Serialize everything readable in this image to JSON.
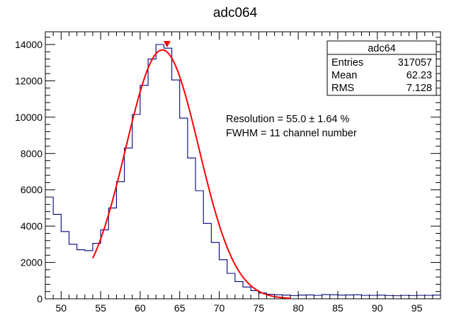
{
  "chart_data": {
    "type": "histogram",
    "title": "adc064",
    "xlim": [
      48,
      98
    ],
    "ylim": [
      0,
      14700
    ],
    "x_ticks": [
      50,
      55,
      60,
      65,
      70,
      75,
      80,
      85,
      90,
      95
    ],
    "y_ticks": [
      0,
      2000,
      4000,
      6000,
      8000,
      10000,
      12000,
      14000
    ],
    "bin_width": 1,
    "bin_start": 48,
    "counts": [
      5600,
      4650,
      3700,
      3000,
      2700,
      2650,
      3050,
      3800,
      5000,
      6450,
      8300,
      10150,
      11750,
      13200,
      14000,
      13800,
      12050,
      9950,
      7750,
      5950,
      4150,
      3100,
      2150,
      1400,
      950,
      650,
      450,
      320,
      250,
      220,
      200,
      180,
      200,
      210,
      190,
      230,
      220,
      200,
      210,
      220,
      190,
      190,
      200,
      180,
      170,
      190,
      180,
      190,
      190,
      200
    ],
    "fit": {
      "function": "gaussian",
      "amplitude": 13700,
      "mean": 62.8,
      "sigma": 4.62,
      "x_range": [
        54,
        79
      ]
    },
    "peak_marker_x": 63.4,
    "peak_marker_y": 14000,
    "stats_box": {
      "title": "adc64",
      "rows": [
        {
          "label": "Entries",
          "value": "317057"
        },
        {
          "label": "Mean",
          "value": "62.23"
        },
        {
          "label": "RMS",
          "value": "7.128"
        }
      ]
    },
    "annotations": [
      "Resolution = 55.0 ± 1.64 %",
      "FWHM = 11 channel number"
    ],
    "colors": {
      "histogram": "#000080",
      "fit": "#ff0000",
      "marker": "#ff0000"
    }
  }
}
